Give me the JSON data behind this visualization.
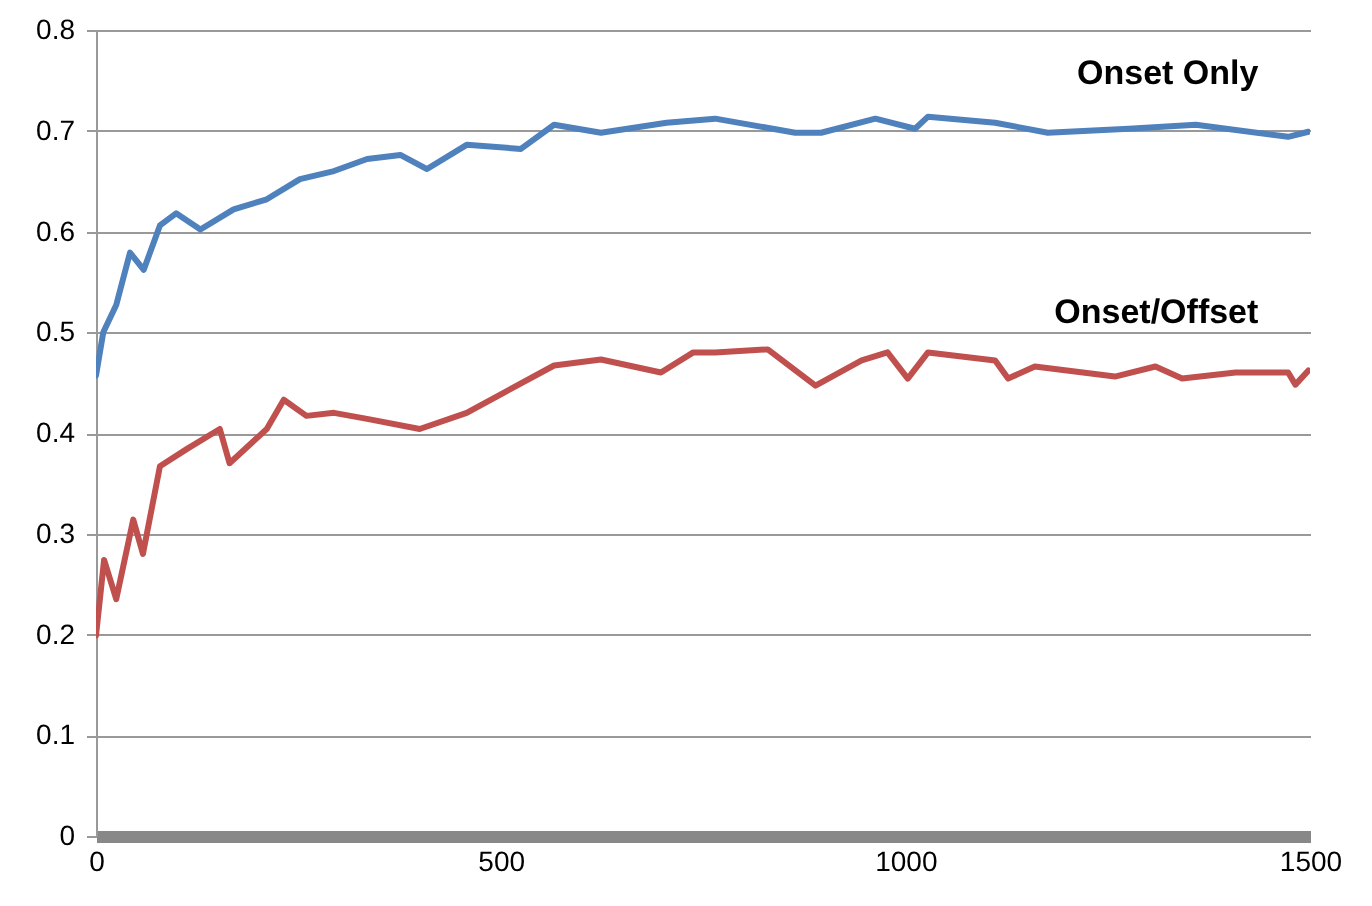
{
  "chart_data": {
    "type": "line",
    "xlim": [
      0,
      1500
    ],
    "xticks": [
      0,
      500,
      1000,
      1500
    ],
    "ylim": [
      0,
      0.8
    ],
    "yticks": [
      0,
      0.1,
      0.2,
      0.3,
      0.4,
      0.5,
      0.6,
      0.7,
      0.8
    ],
    "grid": "y",
    "marker": "none",
    "line_style": "solid",
    "series": [
      {
        "name": "Onset Only",
        "color": "#4f81bd",
        "x": [
          0,
          9,
          25,
          42,
          59,
          79,
          99,
          129,
          170,
          211,
          252,
          294,
          335,
          376,
          409,
          458,
          525,
          566,
          624,
          705,
          765,
          864,
          896,
          963,
          1012,
          1028,
          1111,
          1176,
          1276,
          1359,
          1473,
          1498
        ],
        "values": [
          0.457,
          0.5,
          0.527,
          0.579,
          0.562,
          0.606,
          0.618,
          0.602,
          0.622,
          0.632,
          0.652,
          0.66,
          0.672,
          0.676,
          0.662,
          0.686,
          0.682,
          0.706,
          0.698,
          0.708,
          0.712,
          0.698,
          0.698,
          0.712,
          0.702,
          0.714,
          0.708,
          0.698,
          0.702,
          0.706,
          0.694,
          0.699
        ]
      },
      {
        "name": "Onset/Offset",
        "color": "#c0504d",
        "x": [
          0,
          10,
          25,
          46,
          58,
          79,
          112,
          153,
          165,
          211,
          232,
          260,
          294,
          335,
          400,
          458,
          566,
          624,
          698,
          738,
          765,
          830,
          889,
          946,
          978,
          1003,
          1028,
          1111,
          1127,
          1160,
          1259,
          1309,
          1342,
          1408,
          1473,
          1482,
          1498
        ],
        "values": [
          0.199,
          0.274,
          0.235,
          0.314,
          0.28,
          0.367,
          0.384,
          0.404,
          0.37,
          0.404,
          0.433,
          0.417,
          0.42,
          0.414,
          0.404,
          0.42,
          0.467,
          0.473,
          0.46,
          0.48,
          0.48,
          0.483,
          0.447,
          0.472,
          0.48,
          0.454,
          0.48,
          0.472,
          0.454,
          0.466,
          0.456,
          0.466,
          0.454,
          0.46,
          0.46,
          0.448,
          0.462
        ]
      }
    ]
  }
}
